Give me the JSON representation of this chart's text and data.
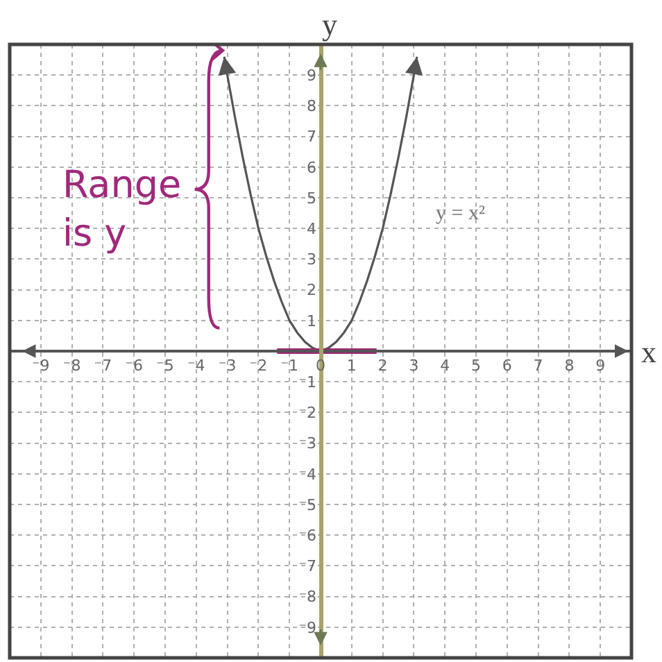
{
  "chart_data": {
    "type": "line",
    "xlabel": "x",
    "ylabel": "y",
    "annotations": [
      "Range is y"
    ],
    "xlim": [
      -10,
      10
    ],
    "ylim": [
      -10,
      10
    ],
    "xticks": [
      {
        "value": -9,
        "label": "⁻9"
      },
      {
        "value": -8,
        "label": "⁻8"
      },
      {
        "value": -7,
        "label": "⁻7"
      },
      {
        "value": -6,
        "label": "⁻6"
      },
      {
        "value": -5,
        "label": "⁻5"
      },
      {
        "value": -4,
        "label": "⁻4"
      },
      {
        "value": -3,
        "label": "⁻3"
      },
      {
        "value": -2,
        "label": "⁻2"
      },
      {
        "value": -1,
        "label": "⁻1"
      },
      0,
      1,
      2,
      3,
      4,
      5,
      6,
      7,
      8,
      9
    ],
    "yticks": [
      {
        "value": -9,
        "label": "⁻9"
      },
      {
        "value": -8,
        "label": "⁻8"
      },
      {
        "value": -7,
        "label": "⁻7"
      },
      {
        "value": -6,
        "label": "⁻6"
      },
      {
        "value": -5,
        "label": "⁻5"
      },
      {
        "value": -4,
        "label": "⁻4"
      },
      {
        "value": -3,
        "label": "⁻3"
      },
      {
        "value": -2,
        "label": "⁻2"
      },
      {
        "value": -1,
        "label": "⁻1"
      },
      1,
      2,
      3,
      4,
      5,
      6,
      7,
      8,
      9
    ],
    "series": [
      {
        "name": "y = x²",
        "color": "#555555",
        "x": [
          -3.1,
          -3,
          -2.75,
          -2.5,
          -2.25,
          -2,
          -1.75,
          -1.5,
          -1.25,
          -1,
          -0.75,
          -0.5,
          -0.25,
          0,
          0.25,
          0.5,
          0.75,
          1,
          1.25,
          1.5,
          1.75,
          2,
          2.25,
          2.5,
          2.75,
          3,
          3.1
        ],
        "values": [
          9.6,
          9,
          7.6,
          6.3,
          5.1,
          4,
          3.1,
          2.3,
          1.6,
          1,
          0.6,
          0.3,
          0.1,
          0,
          0.1,
          0.3,
          0.6,
          1,
          1.6,
          2.3,
          3.1,
          4,
          5.1,
          6.3,
          7.6,
          9,
          9.6
        ]
      },
      {
        "color": "#a0287a",
        "x": [
          -1.4,
          1.8
        ],
        "values": [
          0,
          0
        ]
      }
    ],
    "grid": true,
    "legend": false,
    "marker": "none",
    "line_style": "solid"
  }
}
